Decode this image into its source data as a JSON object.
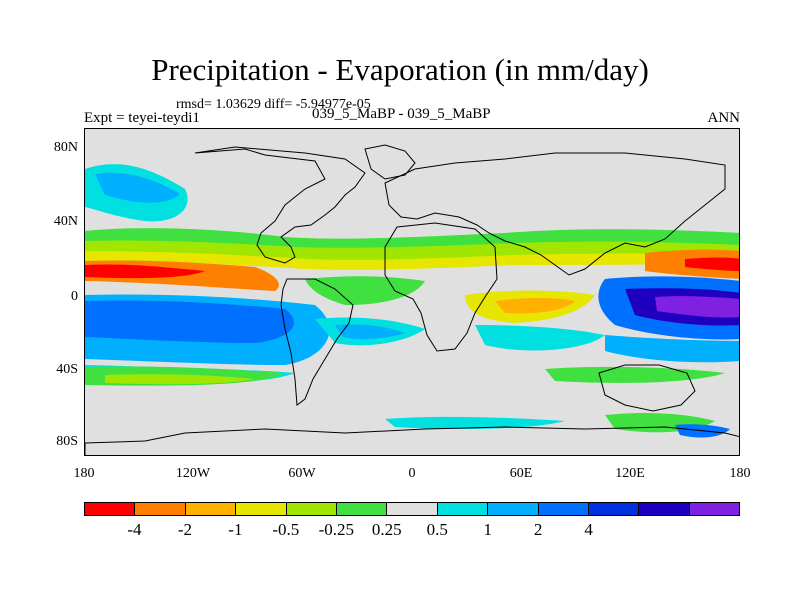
{
  "title": "Precipitation - Evaporation (in mm/day)",
  "stats": "rmsd= 1.03629 diff= -5.94977e-05",
  "expt": "Expt = teyei-teydi1",
  "cases": "039_5_MaBP - 039_5_MaBP",
  "season": "ANN",
  "y_ticks": [
    "80N",
    "40N",
    "0",
    "40S",
    "80S"
  ],
  "x_ticks": [
    "180",
    "120W",
    "60W",
    "0",
    "60E",
    "120E",
    "180"
  ],
  "colorbar": {
    "colors": [
      "#ff0000",
      "#ff8000",
      "#ffb000",
      "#e6e600",
      "#a0e600",
      "#40e040",
      "#e0e0e0",
      "#00e0e0",
      "#00b0ff",
      "#0070ff",
      "#0030e0",
      "#2000c0",
      "#8020e0"
    ],
    "labels": [
      "-4",
      "-2",
      "-1",
      "-0.5",
      "-0.25",
      "0.25",
      "0.5",
      "1",
      "2",
      "4"
    ]
  },
  "map_colors": {
    "ocean_neutral": "#e0e0e0",
    "green": "#40e040",
    "light_green": "#a0e600",
    "yellow": "#e6e600",
    "orange": "#ffb000",
    "dark_orange": "#ff8000",
    "red": "#ff0000",
    "cyan": "#00e0e0",
    "sky": "#00b0ff",
    "blue": "#0070ff",
    "dark_blue": "#0030e0",
    "navy": "#2000c0",
    "purple": "#8020e0"
  }
}
